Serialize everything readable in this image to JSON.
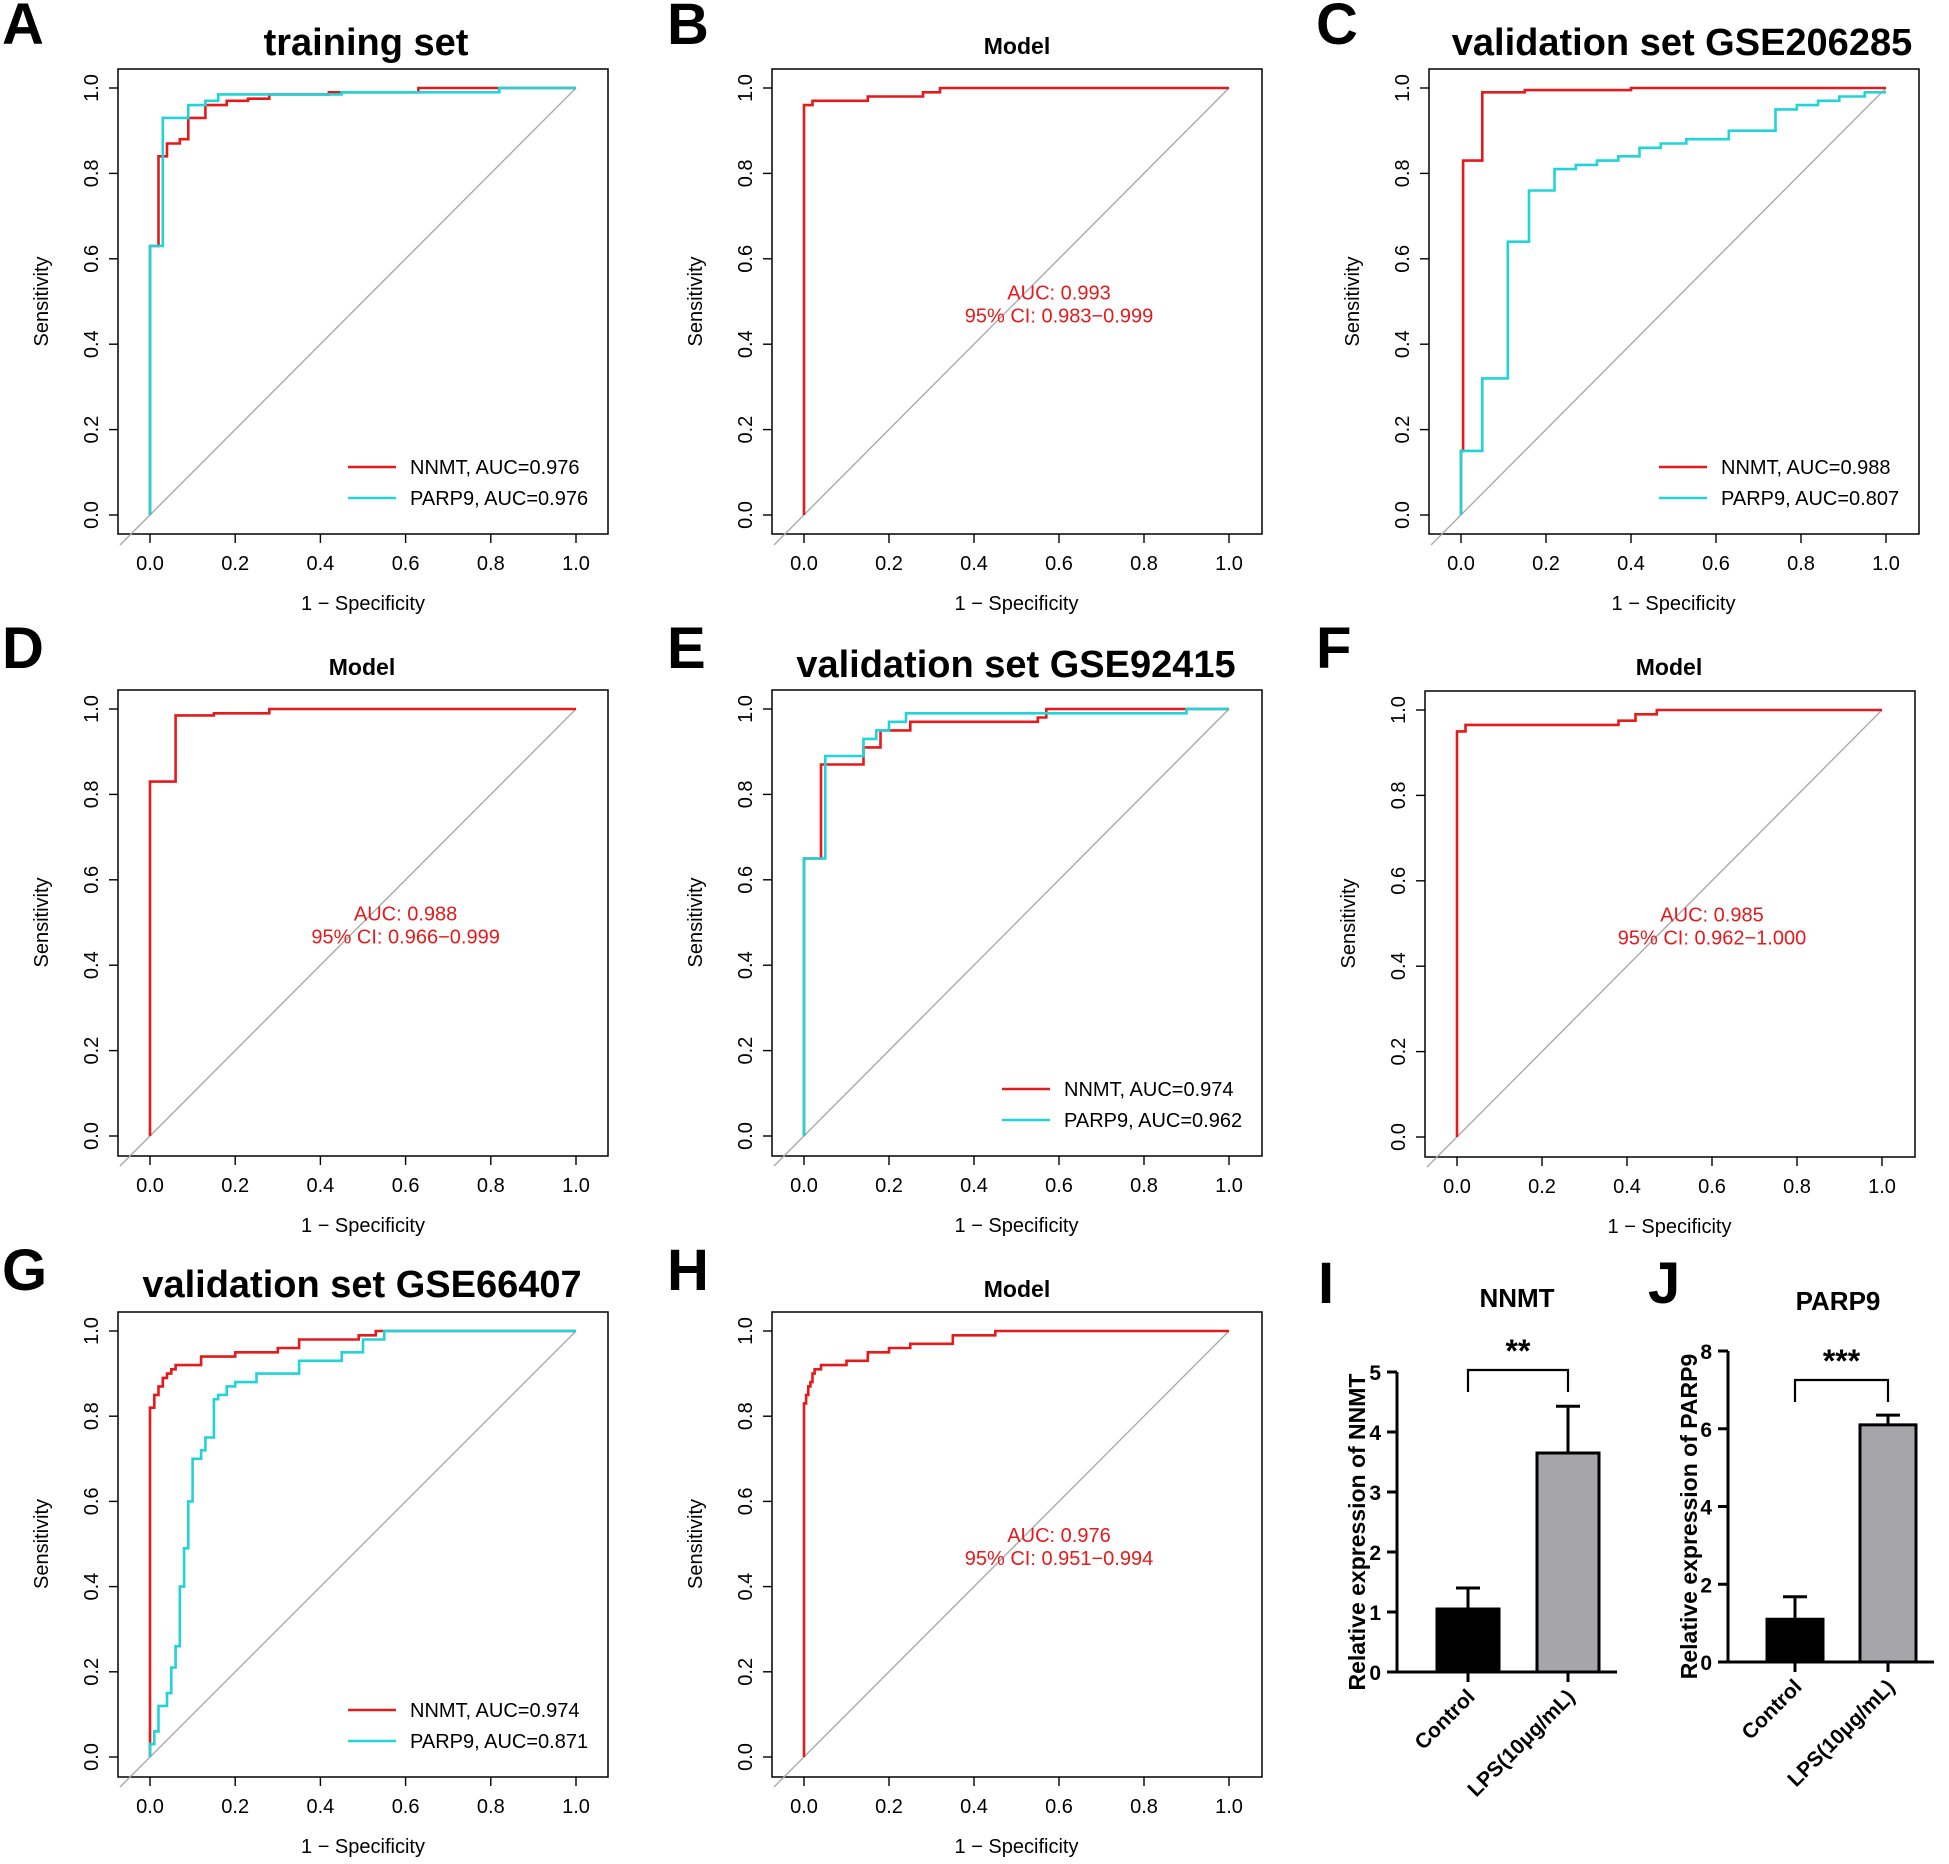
{
  "colors": {
    "nnmt": "#e41a1c",
    "parp9": "#22d3d8",
    "diagonal": "#aaaaaa",
    "control_bar": "#000000",
    "lps_bar": "#a6a6aa"
  },
  "common": {
    "xlabel": "1 − Specificity",
    "ylabel": "Sensitivity"
  },
  "chart_data": [
    {
      "panel": "A",
      "type": "line",
      "title": "training set",
      "xlabel": "1 − Specificity",
      "ylabel": "Sensitivity",
      "xlim": [
        0,
        1
      ],
      "ylim": [
        0,
        1
      ],
      "xticks": [
        "0.0",
        "0.2",
        "0.4",
        "0.6",
        "0.8",
        "1.0"
      ],
      "yticks": [
        "0.0",
        "0.2",
        "0.4",
        "0.6",
        "0.8",
        "1.0"
      ],
      "series": [
        {
          "name": "NNMT",
          "legend": "NNMT, AUC=0.976",
          "color": "nnmt",
          "x": [
            0,
            0,
            0.02,
            0.02,
            0.04,
            0.04,
            0.07,
            0.07,
            0.09,
            0.09,
            0.13,
            0.13,
            0.18,
            0.18,
            0.23,
            0.23,
            0.28,
            0.28,
            0.42,
            0.42,
            0.55,
            0.55,
            0.63,
            0.63,
            0.81,
            0.81,
            1.0
          ],
          "y": [
            0,
            0.63,
            0.63,
            0.84,
            0.84,
            0.87,
            0.87,
            0.88,
            0.88,
            0.93,
            0.93,
            0.96,
            0.96,
            0.97,
            0.97,
            0.975,
            0.975,
            0.985,
            0.985,
            0.99,
            0.99,
            0.99,
            0.99,
            1.0,
            1.0,
            1.0,
            1.0
          ]
        },
        {
          "name": "PARP9",
          "legend": "PARP9, AUC=0.976",
          "color": "parp9",
          "x": [
            0,
            0,
            0.03,
            0.03,
            0.09,
            0.09,
            0.13,
            0.13,
            0.16,
            0.16,
            0.32,
            0.32,
            0.45,
            0.45,
            0.82,
            0.82,
            1.0
          ],
          "y": [
            0,
            0.63,
            0.63,
            0.93,
            0.93,
            0.96,
            0.96,
            0.97,
            0.97,
            0.985,
            0.985,
            0.985,
            0.985,
            0.99,
            0.99,
            1.0,
            1.0
          ]
        }
      ],
      "annotation": null
    },
    {
      "panel": "B",
      "type": "line",
      "title": "Model",
      "xlabel": "1 − Specificity",
      "ylabel": "Sensitivity",
      "xlim": [
        0,
        1
      ],
      "ylim": [
        0,
        1
      ],
      "xticks": [
        "0.0",
        "0.2",
        "0.4",
        "0.6",
        "0.8",
        "1.0"
      ],
      "yticks": [
        "0.0",
        "0.2",
        "0.4",
        "0.6",
        "0.8",
        "1.0"
      ],
      "series": [
        {
          "name": "Model",
          "legend": "",
          "color": "nnmt",
          "x": [
            0,
            0,
            0.02,
            0.02,
            0.15,
            0.15,
            0.28,
            0.28,
            0.32,
            0.32,
            1.0
          ],
          "y": [
            0,
            0.96,
            0.96,
            0.97,
            0.97,
            0.98,
            0.98,
            0.99,
            0.99,
            1.0,
            1.0
          ]
        }
      ],
      "annotation": {
        "auc": "AUC: 0.993",
        "ci": "95% CI: 0.983−0.999"
      }
    },
    {
      "panel": "C",
      "type": "line",
      "title": "validation set GSE206285",
      "xlabel": "1 − Specificity",
      "ylabel": "Sensitivity",
      "xlim": [
        0,
        1
      ],
      "ylim": [
        0,
        1
      ],
      "xticks": [
        "0.0",
        "0.2",
        "0.4",
        "0.6",
        "0.8",
        "1.0"
      ],
      "yticks": [
        "0.0",
        "0.2",
        "0.4",
        "0.6",
        "0.8",
        "1.0"
      ],
      "series": [
        {
          "name": "NNMT",
          "legend": "NNMT, AUC=0.988",
          "color": "nnmt",
          "x": [
            0,
            0,
            0.005,
            0.005,
            0.05,
            0.05,
            0.15,
            0.15,
            0.4,
            0.4,
            1.0
          ],
          "y": [
            0,
            0.15,
            0.15,
            0.83,
            0.83,
            0.99,
            0.99,
            0.995,
            0.995,
            1.0,
            1.0
          ]
        },
        {
          "name": "PARP9",
          "legend": "PARP9, AUC=0.807",
          "color": "parp9",
          "x": [
            0,
            0,
            0.05,
            0.05,
            0.11,
            0.11,
            0.16,
            0.16,
            0.22,
            0.22,
            0.27,
            0.27,
            0.32,
            0.32,
            0.37,
            0.37,
            0.42,
            0.42,
            0.47,
            0.47,
            0.53,
            0.53,
            0.63,
            0.63,
            0.74,
            0.74,
            0.79,
            0.79,
            0.84,
            0.84,
            0.89,
            0.89,
            0.95,
            0.95,
            1.0
          ],
          "y": [
            0,
            0.15,
            0.15,
            0.32,
            0.32,
            0.64,
            0.64,
            0.76,
            0.76,
            0.81,
            0.81,
            0.82,
            0.82,
            0.83,
            0.83,
            0.84,
            0.84,
            0.86,
            0.86,
            0.87,
            0.87,
            0.88,
            0.88,
            0.9,
            0.9,
            0.95,
            0.95,
            0.96,
            0.96,
            0.97,
            0.97,
            0.98,
            0.98,
            0.99,
            0.99
          ]
        }
      ],
      "annotation": null
    },
    {
      "panel": "D",
      "type": "line",
      "title": "Model",
      "xlabel": "1 − Specificity",
      "ylabel": "Sensitivity",
      "xlim": [
        0,
        1
      ],
      "ylim": [
        0,
        1
      ],
      "xticks": [
        "0.0",
        "0.2",
        "0.4",
        "0.6",
        "0.8",
        "1.0"
      ],
      "yticks": [
        "0.0",
        "0.2",
        "0.4",
        "0.6",
        "0.8",
        "1.0"
      ],
      "series": [
        {
          "name": "Model",
          "legend": "",
          "color": "nnmt",
          "x": [
            0,
            0,
            0.06,
            0.06,
            0.15,
            0.15,
            0.28,
            0.28,
            1.0
          ],
          "y": [
            0,
            0.83,
            0.83,
            0.985,
            0.985,
            0.99,
            0.99,
            1.0,
            1.0
          ]
        }
      ],
      "annotation": {
        "auc": "AUC: 0.988",
        "ci": "95% CI: 0.966−0.999"
      }
    },
    {
      "panel": "E",
      "type": "line",
      "title": "validation set GSE92415",
      "xlabel": "1 − Specificity",
      "ylabel": "Sensitivity",
      "xlim": [
        0,
        1
      ],
      "ylim": [
        0,
        1
      ],
      "xticks": [
        "0.0",
        "0.2",
        "0.4",
        "0.6",
        "0.8",
        "1.0"
      ],
      "yticks": [
        "0.0",
        "0.2",
        "0.4",
        "0.6",
        "0.8",
        "1.0"
      ],
      "series": [
        {
          "name": "NNMT",
          "legend": "NNMT, AUC=0.974",
          "color": "nnmt",
          "x": [
            0,
            0,
            0.04,
            0.04,
            0.14,
            0.14,
            0.18,
            0.18,
            0.25,
            0.25,
            0.55,
            0.55,
            0.57,
            0.57,
            1.0
          ],
          "y": [
            0,
            0.65,
            0.65,
            0.87,
            0.87,
            0.91,
            0.91,
            0.95,
            0.95,
            0.97,
            0.97,
            0.98,
            0.98,
            1.0,
            1.0
          ]
        },
        {
          "name": "PARP9",
          "legend": "PARP9, AUC=0.962",
          "color": "parp9",
          "x": [
            0,
            0,
            0.05,
            0.05,
            0.14,
            0.14,
            0.17,
            0.17,
            0.2,
            0.2,
            0.24,
            0.24,
            0.9,
            0.9,
            1.0
          ],
          "y": [
            0,
            0.65,
            0.65,
            0.89,
            0.89,
            0.93,
            0.93,
            0.95,
            0.95,
            0.97,
            0.97,
            0.99,
            0.99,
            1.0,
            1.0
          ]
        }
      ],
      "annotation": null
    },
    {
      "panel": "F",
      "type": "line",
      "title": "Model",
      "xlabel": "1 − Specificity",
      "ylabel": "Sensitivity",
      "xlim": [
        0,
        1
      ],
      "ylim": [
        0,
        1
      ],
      "xticks": [
        "0.0",
        "0.2",
        "0.4",
        "0.6",
        "0.8",
        "1.0"
      ],
      "yticks": [
        "0.0",
        "0.2",
        "0.4",
        "0.6",
        "0.8",
        "1.0"
      ],
      "series": [
        {
          "name": "Model",
          "legend": "",
          "color": "nnmt",
          "x": [
            0,
            0,
            0.02,
            0.02,
            0.38,
            0.38,
            0.42,
            0.42,
            0.47,
            0.47,
            1.0
          ],
          "y": [
            0,
            0.95,
            0.95,
            0.965,
            0.965,
            0.975,
            0.975,
            0.99,
            0.99,
            1.0,
            1.0
          ]
        }
      ],
      "annotation": {
        "auc": "AUC: 0.985",
        "ci": "95% CI: 0.962−1.000"
      }
    },
    {
      "panel": "G",
      "type": "line",
      "title": "validation set GSE66407",
      "xlabel": "1 − Specificity",
      "ylabel": "Sensitivity",
      "xlim": [
        0,
        1
      ],
      "ylim": [
        0,
        1
      ],
      "xticks": [
        "0.0",
        "0.2",
        "0.4",
        "0.6",
        "0.8",
        "1.0"
      ],
      "yticks": [
        "0.0",
        "0.2",
        "0.4",
        "0.6",
        "0.8",
        "1.0"
      ],
      "series": [
        {
          "name": "NNMT",
          "legend": "NNMT, AUC=0.974",
          "color": "nnmt",
          "x": [
            0,
            0,
            0.01,
            0.01,
            0.02,
            0.02,
            0.03,
            0.03,
            0.04,
            0.04,
            0.05,
            0.05,
            0.06,
            0.06,
            0.12,
            0.12,
            0.2,
            0.2,
            0.3,
            0.3,
            0.35,
            0.35,
            0.41,
            0.41,
            0.49,
            0.49,
            0.53,
            0.53,
            1.0
          ],
          "y": [
            0,
            0.82,
            0.82,
            0.85,
            0.85,
            0.87,
            0.87,
            0.89,
            0.89,
            0.9,
            0.9,
            0.91,
            0.91,
            0.92,
            0.92,
            0.94,
            0.94,
            0.95,
            0.95,
            0.96,
            0.96,
            0.98,
            0.98,
            0.98,
            0.98,
            0.99,
            0.99,
            1.0,
            1.0
          ]
        },
        {
          "name": "PARP9",
          "legend": "PARP9, AUC=0.871",
          "color": "parp9",
          "x": [
            0,
            0,
            0.01,
            0.01,
            0.02,
            0.02,
            0.04,
            0.04,
            0.05,
            0.05,
            0.06,
            0.06,
            0.07,
            0.07,
            0.08,
            0.08,
            0.09,
            0.09,
            0.1,
            0.1,
            0.12,
            0.12,
            0.13,
            0.13,
            0.15,
            0.15,
            0.16,
            0.16,
            0.18,
            0.18,
            0.2,
            0.2,
            0.25,
            0.25,
            0.35,
            0.35,
            0.45,
            0.45,
            0.5,
            0.5,
            0.55,
            0.55,
            1.0
          ],
          "y": [
            0,
            0.03,
            0.03,
            0.06,
            0.06,
            0.12,
            0.12,
            0.15,
            0.15,
            0.21,
            0.21,
            0.26,
            0.26,
            0.4,
            0.4,
            0.49,
            0.49,
            0.6,
            0.6,
            0.7,
            0.7,
            0.72,
            0.72,
            0.75,
            0.75,
            0.84,
            0.84,
            0.85,
            0.85,
            0.87,
            0.87,
            0.88,
            0.88,
            0.9,
            0.9,
            0.93,
            0.93,
            0.95,
            0.95,
            0.98,
            0.98,
            1.0,
            1.0
          ]
        }
      ],
      "annotation": null
    },
    {
      "panel": "H",
      "type": "line",
      "title": "Model",
      "xlabel": "1 − Specificity",
      "ylabel": "Sensitivity",
      "xlim": [
        0,
        1
      ],
      "ylim": [
        0,
        1
      ],
      "xticks": [
        "0.0",
        "0.2",
        "0.4",
        "0.6",
        "0.8",
        "1.0"
      ],
      "yticks": [
        "0.0",
        "0.2",
        "0.4",
        "0.6",
        "0.8",
        "1.0"
      ],
      "series": [
        {
          "name": "Model",
          "legend": "",
          "color": "nnmt",
          "x": [
            0,
            0,
            0.005,
            0.005,
            0.01,
            0.01,
            0.015,
            0.015,
            0.02,
            0.02,
            0.025,
            0.025,
            0.04,
            0.04,
            0.1,
            0.1,
            0.15,
            0.15,
            0.2,
            0.2,
            0.25,
            0.25,
            0.35,
            0.35,
            0.45,
            0.45,
            1.0
          ],
          "y": [
            0,
            0.83,
            0.83,
            0.85,
            0.85,
            0.87,
            0.87,
            0.88,
            0.88,
            0.9,
            0.9,
            0.91,
            0.91,
            0.92,
            0.92,
            0.93,
            0.93,
            0.95,
            0.95,
            0.96,
            0.96,
            0.97,
            0.97,
            0.99,
            0.99,
            1.0,
            1.0
          ]
        }
      ],
      "annotation": {
        "auc": "AUC: 0.976",
        "ci": "95% CI: 0.951−0.994"
      }
    },
    {
      "panel": "I",
      "type": "bar",
      "title": "NNMT",
      "ylabel": "Relative expression of NNMT",
      "ylim": [
        0,
        5
      ],
      "yticks": [
        "0",
        "1",
        "2",
        "3",
        "4",
        "5"
      ],
      "categories": [
        "Control",
        "LPS(10μg/mL)"
      ],
      "values": [
        1.05,
        3.65
      ],
      "errors": [
        0.35,
        0.78
      ],
      "significance": "**"
    },
    {
      "panel": "J",
      "type": "bar",
      "title": "PARP9",
      "ylabel": "Relative expression of PARP9",
      "ylim": [
        0,
        8
      ],
      "yticks": [
        "0",
        "2",
        "4",
        "6",
        "8"
      ],
      "categories": [
        "Control",
        "LPS(10μg/mL)"
      ],
      "values": [
        1.1,
        6.1
      ],
      "errors": [
        0.58,
        0.25
      ],
      "significance": "***"
    }
  ]
}
